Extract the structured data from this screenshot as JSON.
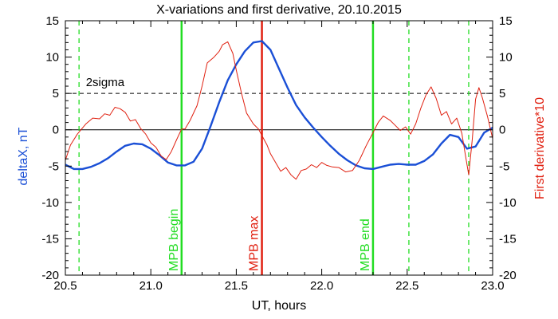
{
  "chart_data": {
    "type": "line",
    "title": "X-variations and first derivative, 20.10.2015",
    "xlabel": "UT, hours",
    "ylabel_left": "deltaX, nT",
    "ylabel_right": "First derivative*10",
    "xlim": [
      20.5,
      23.0
    ],
    "ylim": [
      -20,
      15
    ],
    "xticks": [
      "20.5",
      "21.0",
      "21.5",
      "22.0",
      "22.5",
      "23.0"
    ],
    "yticks": [
      "15",
      "10",
      "5",
      "0",
      "-5",
      "-10",
      "-15",
      "-20"
    ],
    "colors": {
      "deltaX": "#1a4fd6",
      "derivative": "#e02010",
      "mpb_begin_end": "#22dd22",
      "mpb_max": "#e02010",
      "sigma": "#000000"
    },
    "threshold": {
      "label": "2sigma",
      "y": 5
    },
    "zero_line": 0,
    "vlines": [
      {
        "label": "",
        "x": 20.58,
        "style": "dashed",
        "color": "#22dd22"
      },
      {
        "label": "MPB begin",
        "x": 21.18,
        "style": "solid",
        "color": "#22dd22"
      },
      {
        "label": "MPB max",
        "x": 21.65,
        "style": "solid",
        "color": "#e02010"
      },
      {
        "label": "MPB end",
        "x": 22.3,
        "style": "solid",
        "color": "#22dd22"
      },
      {
        "label": "",
        "x": 22.51,
        "style": "dashed",
        "color": "#22dd22"
      },
      {
        "label": "",
        "x": 22.86,
        "style": "dashed",
        "color": "#22dd22"
      }
    ],
    "series": [
      {
        "color": "#1a4fd6",
        "x": [
          20.5,
          20.55,
          20.6,
          20.65,
          20.7,
          20.75,
          20.8,
          20.85,
          20.9,
          20.95,
          21.0,
          21.05,
          21.1,
          21.15,
          21.2,
          21.25,
          21.3,
          21.35,
          21.4,
          21.45,
          21.5,
          21.55,
          21.6,
          21.65,
          21.7,
          21.75,
          21.8,
          21.85,
          21.9,
          21.95,
          22.0,
          22.05,
          22.1,
          22.15,
          22.2,
          22.25,
          22.3,
          22.35,
          22.4,
          22.45,
          22.5,
          22.55,
          22.6,
          22.65,
          22.7,
          22.75,
          22.8,
          22.85,
          22.9,
          22.95,
          23.0
        ],
        "y": [
          -4.8,
          -5.4,
          -5.4,
          -5.1,
          -4.6,
          -3.9,
          -3.0,
          -2.2,
          -1.9,
          -2.0,
          -2.6,
          -3.5,
          -4.5,
          -4.9,
          -4.9,
          -4.4,
          -2.6,
          0.5,
          3.8,
          6.8,
          9.0,
          10.8,
          12.0,
          12.2,
          11.0,
          8.4,
          5.8,
          3.4,
          1.7,
          0.3,
          -1.0,
          -2.2,
          -3.3,
          -4.2,
          -4.9,
          -5.3,
          -5.4,
          -5.1,
          -4.8,
          -4.7,
          -4.8,
          -4.8,
          -4.3,
          -3.4,
          -1.9,
          -0.7,
          -1.0,
          -2.6,
          -2.3,
          -0.4,
          0.3
        ]
      },
      {
        "color": "#e02010",
        "x": [
          20.5,
          20.53,
          20.57,
          20.62,
          20.66,
          20.7,
          20.73,
          20.76,
          20.79,
          20.82,
          20.85,
          20.88,
          20.91,
          20.94,
          20.97,
          21.0,
          21.03,
          21.06,
          21.09,
          21.12,
          21.15,
          21.18,
          21.2,
          21.23,
          21.27,
          21.3,
          21.33,
          21.37,
          21.4,
          21.42,
          21.45,
          21.48,
          21.5,
          21.53,
          21.56,
          21.6,
          21.63,
          21.65,
          21.68,
          21.7,
          21.73,
          21.76,
          21.79,
          21.82,
          21.85,
          21.88,
          21.91,
          21.94,
          21.97,
          22.0,
          22.03,
          22.06,
          22.1,
          22.14,
          22.18,
          22.22,
          22.26,
          22.3,
          22.33,
          22.36,
          22.4,
          22.43,
          22.46,
          22.49,
          22.52,
          22.55,
          22.58,
          22.61,
          22.64,
          22.67,
          22.7,
          22.73,
          22.76,
          22.79,
          22.82,
          22.84,
          22.86,
          22.88,
          22.9,
          22.92,
          22.94,
          22.97,
          23.0
        ],
        "y": [
          -4.2,
          -2.1,
          -0.6,
          0.8,
          1.6,
          1.5,
          2.2,
          2.0,
          3.1,
          2.9,
          2.4,
          1.2,
          1.4,
          0.2,
          -0.6,
          -1.8,
          -2.4,
          -3.6,
          -4.1,
          -3.0,
          -1.4,
          0.1,
          0.1,
          1.3,
          3.3,
          6.0,
          9.2,
          10.0,
          10.8,
          11.7,
          12.1,
          10.5,
          8.2,
          5.1,
          2.3,
          0.8,
          0.1,
          -0.8,
          -2.1,
          -3.3,
          -4.5,
          -5.7,
          -5.2,
          -6.2,
          -6.8,
          -5.6,
          -5.4,
          -4.8,
          -5.2,
          -4.5,
          -4.9,
          -5.1,
          -5.2,
          -5.8,
          -5.6,
          -4.2,
          -2.2,
          -0.4,
          1.0,
          1.9,
          1.3,
          0.6,
          -0.1,
          0.4,
          -0.6,
          0.8,
          3.0,
          4.8,
          5.9,
          4.3,
          2.0,
          2.5,
          0.8,
          1.6,
          -0.5,
          -3.4,
          -6.2,
          -1.5,
          4.2,
          5.8,
          4.4,
          1.8,
          -1.2
        ]
      }
    ]
  }
}
